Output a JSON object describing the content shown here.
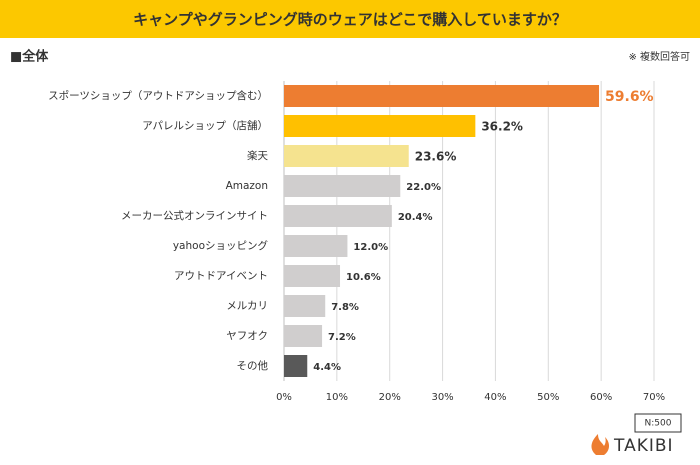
{
  "chart_data": {
    "type": "bar",
    "orientation": "horizontal",
    "title": "キャンプやグランピング時のウェアはどこで購入していますか？",
    "segment_label": "■全体",
    "note": "※ 複数回答可",
    "sample_size": "N:500",
    "brand": "TAKIBI",
    "categories": [
      "スポーツショップ（アウトドアショップ含む）",
      "アパレルショップ（店舗）",
      "楽天",
      "Amazon",
      "メーカー公式オンラインサイト",
      "yahooショッピング",
      "アウトドアイベント",
      "メルカリ",
      "ヤフオク",
      "その他"
    ],
    "values": [
      59.6,
      36.2,
      23.6,
      22.0,
      20.4,
      12.0,
      10.6,
      7.8,
      7.2,
      4.4
    ],
    "value_labels": [
      "59.6%",
      "36.2%",
      "23.6%",
      "22.0%",
      "20.4%",
      "12.0%",
      "10.6%",
      "7.8%",
      "7.2%",
      "4.4%"
    ],
    "colors": [
      "#ed7d31",
      "#ffc000",
      "#f5e38f",
      "#d0cece",
      "#d0cece",
      "#d0cece",
      "#d0cece",
      "#d0cece",
      "#d0cece",
      "#595959"
    ],
    "xlim": [
      0,
      70
    ],
    "xticks": [
      {
        "value": 0,
        "label": "0%"
      },
      {
        "value": 10,
        "label": "10%"
      },
      {
        "value": 20,
        "label": "20%"
      },
      {
        "value": 30,
        "label": "30%"
      },
      {
        "value": 40,
        "label": "40%"
      },
      {
        "value": 50,
        "label": "50%"
      },
      {
        "value": 60,
        "label": "60%"
      },
      {
        "value": 70,
        "label": "70%"
      }
    ],
    "grid": true
  }
}
